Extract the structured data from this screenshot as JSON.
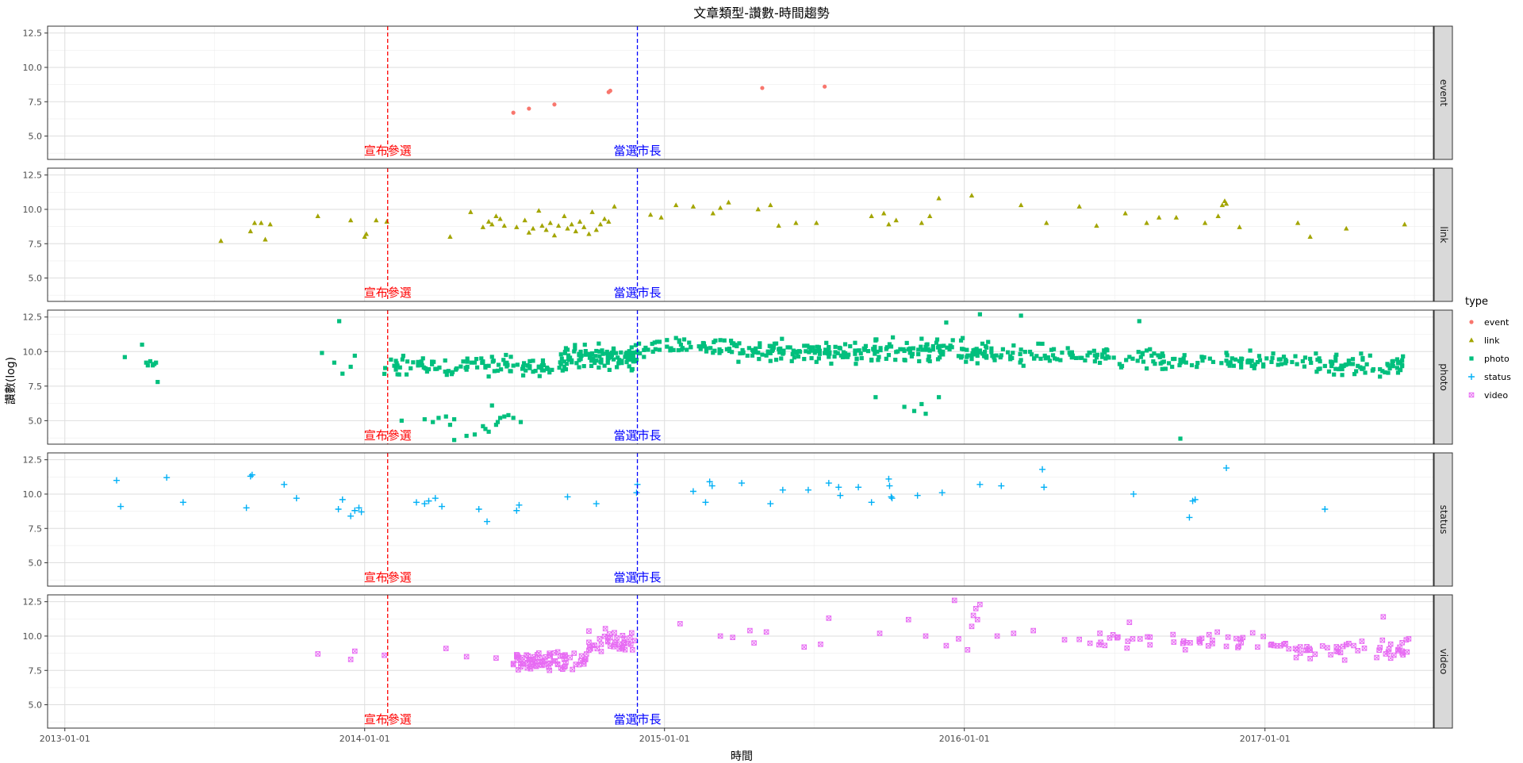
{
  "chart_data": {
    "type": "scatter",
    "title": "文章類型-讚數-時間趨勢",
    "xlabel": "時間",
    "ylabel": "讚數(log)",
    "x_type": "date",
    "xlim": [
      "2012-12-11",
      "2017-07-25"
    ],
    "ylim": [
      3.3,
      13.0
    ],
    "x_ticks": [
      "2013-01-01",
      "2014-01-01",
      "2015-01-01",
      "2016-01-01",
      "2017-01-01"
    ],
    "y_ticks": [
      5.0,
      7.5,
      10.0,
      12.5
    ],
    "y_tick_labels": [
      "5.0",
      "7.5",
      "10.0",
      "12.5"
    ],
    "grid": true,
    "legend": {
      "title": "type",
      "position": "right"
    },
    "annotations": [
      {
        "label": "宣布參選",
        "date": "2014-01-29",
        "color": "#ff0000",
        "linestyle": "dashed"
      },
      {
        "label": "當選市長",
        "date": "2014-11-29",
        "color": "#0000ff",
        "linestyle": "dashed"
      }
    ],
    "series": [
      {
        "name": "event",
        "color": "#F8766D",
        "shape": "circle",
        "points": [
          [
            "2014-07-01",
            6.7
          ],
          [
            "2014-07-20",
            7.0
          ],
          [
            "2014-08-20",
            7.3
          ],
          [
            "2014-10-25",
            8.2
          ],
          [
            "2014-10-27",
            8.3
          ],
          [
            "2015-04-30",
            8.5
          ],
          [
            "2015-07-15",
            8.6
          ]
        ]
      },
      {
        "name": "link",
        "color": "#A3A500",
        "shape": "triangle",
        "points": [
          [
            "2013-07-10",
            7.7
          ],
          [
            "2013-08-15",
            8.4
          ],
          [
            "2013-08-20",
            9.0
          ],
          [
            "2013-08-28",
            9.0
          ],
          [
            "2013-09-02",
            7.8
          ],
          [
            "2013-09-08",
            8.9
          ],
          [
            "2013-11-05",
            9.5
          ],
          [
            "2013-12-15",
            9.2
          ],
          [
            "2014-01-01",
            8.0
          ],
          [
            "2014-01-03",
            8.2
          ],
          [
            "2014-01-15",
            9.2
          ],
          [
            "2014-01-28",
            9.1
          ],
          [
            "2014-04-15",
            8.0
          ],
          [
            "2014-05-10",
            9.8
          ],
          [
            "2014-05-25",
            8.7
          ],
          [
            "2014-06-01",
            9.1
          ],
          [
            "2014-06-05",
            8.9
          ],
          [
            "2014-06-10",
            9.5
          ],
          [
            "2014-06-15",
            9.3
          ],
          [
            "2014-06-20",
            8.8
          ],
          [
            "2014-07-05",
            8.7
          ],
          [
            "2014-07-15",
            9.2
          ],
          [
            "2014-07-20",
            8.3
          ],
          [
            "2014-07-25",
            8.6
          ],
          [
            "2014-08-01",
            9.9
          ],
          [
            "2014-08-05",
            8.8
          ],
          [
            "2014-08-10",
            8.5
          ],
          [
            "2014-08-15",
            9.0
          ],
          [
            "2014-08-20",
            8.1
          ],
          [
            "2014-08-25",
            8.8
          ],
          [
            "2014-09-01",
            9.5
          ],
          [
            "2014-09-05",
            8.6
          ],
          [
            "2014-09-10",
            8.9
          ],
          [
            "2014-09-15",
            8.4
          ],
          [
            "2014-09-20",
            9.1
          ],
          [
            "2014-09-25",
            8.7
          ],
          [
            "2014-10-01",
            8.2
          ],
          [
            "2014-10-05",
            9.8
          ],
          [
            "2014-10-10",
            8.5
          ],
          [
            "2014-10-15",
            8.9
          ],
          [
            "2014-10-20",
            9.3
          ],
          [
            "2014-10-25",
            9.1
          ],
          [
            "2014-11-01",
            10.2
          ],
          [
            "2014-12-15",
            9.6
          ],
          [
            "2014-12-28",
            9.4
          ],
          [
            "2015-01-15",
            10.3
          ],
          [
            "2015-02-05",
            10.2
          ],
          [
            "2015-03-01",
            9.7
          ],
          [
            "2015-03-10",
            10.1
          ],
          [
            "2015-03-20",
            10.5
          ],
          [
            "2015-04-25",
            10.0
          ],
          [
            "2015-05-10",
            10.3
          ],
          [
            "2015-05-20",
            8.8
          ],
          [
            "2015-06-10",
            9.0
          ],
          [
            "2015-07-05",
            9.0
          ],
          [
            "2015-09-10",
            9.5
          ],
          [
            "2015-09-25",
            9.7
          ],
          [
            "2015-10-01",
            8.9
          ],
          [
            "2015-10-10",
            9.2
          ],
          [
            "2015-11-10",
            9.0
          ],
          [
            "2015-11-20",
            9.5
          ],
          [
            "2015-12-01",
            10.8
          ],
          [
            "2016-01-10",
            11.0
          ],
          [
            "2016-03-10",
            10.3
          ],
          [
            "2016-04-10",
            9.0
          ],
          [
            "2016-05-20",
            10.2
          ],
          [
            "2016-06-10",
            8.8
          ],
          [
            "2016-07-15",
            9.7
          ],
          [
            "2016-08-10",
            9.0
          ],
          [
            "2016-08-25",
            9.4
          ],
          [
            "2016-09-15",
            9.4
          ],
          [
            "2016-10-20",
            9.0
          ],
          [
            "2016-11-05",
            9.5
          ],
          [
            "2016-11-10",
            10.3
          ],
          [
            "2016-11-13",
            10.6
          ],
          [
            "2016-11-15",
            10.4
          ],
          [
            "2016-12-01",
            8.7
          ],
          [
            "2017-02-10",
            9.0
          ],
          [
            "2017-04-10",
            8.6
          ],
          [
            "2017-06-20",
            8.9
          ],
          [
            "2017-02-25",
            8.0
          ]
        ]
      },
      {
        "name": "photo",
        "color": "#00BF7D",
        "shape": "square",
        "generator": "dense",
        "points": [
          [
            "2013-03-15",
            9.6
          ],
          [
            "2013-04-05",
            10.5
          ],
          [
            "2013-04-10",
            9.2
          ],
          [
            "2013-04-12",
            9.0
          ],
          [
            "2013-04-15",
            9.3
          ],
          [
            "2013-04-18",
            9.0
          ],
          [
            "2013-04-20",
            9.1
          ],
          [
            "2013-04-22",
            9.2
          ],
          [
            "2013-04-24",
            7.8
          ],
          [
            "2013-11-10",
            9.9
          ],
          [
            "2013-11-25",
            9.2
          ],
          [
            "2013-12-05",
            8.4
          ],
          [
            "2013-12-15",
            8.9
          ],
          [
            "2013-12-01",
            12.2
          ],
          [
            "2013-12-20",
            9.7
          ],
          [
            "2014-02-15",
            5.0
          ],
          [
            "2014-03-15",
            5.1
          ],
          [
            "2014-03-25",
            4.9
          ],
          [
            "2014-04-01",
            5.2
          ],
          [
            "2014-04-10",
            5.3
          ],
          [
            "2014-04-15",
            4.7
          ],
          [
            "2014-04-20",
            5.1
          ],
          [
            "2014-05-05",
            3.9
          ],
          [
            "2014-05-25",
            4.6
          ],
          [
            "2014-05-28",
            4.4
          ],
          [
            "2014-06-01",
            4.2
          ],
          [
            "2014-06-05",
            6.1
          ],
          [
            "2014-06-10",
            4.7
          ],
          [
            "2014-06-12",
            4.9
          ],
          [
            "2014-06-15",
            5.2
          ],
          [
            "2014-06-20",
            5.3
          ],
          [
            "2014-06-25",
            5.4
          ],
          [
            "2014-07-01",
            5.2
          ],
          [
            "2014-07-10",
            4.9
          ],
          [
            "2014-05-15",
            4.0
          ],
          [
            "2015-09-15",
            6.7
          ],
          [
            "2015-10-20",
            6.0
          ],
          [
            "2015-11-01",
            5.7
          ],
          [
            "2015-11-10",
            6.2
          ],
          [
            "2015-11-15",
            5.5
          ],
          [
            "2015-12-01",
            6.7
          ],
          [
            "2016-09-20",
            3.7
          ],
          [
            "2014-04-20",
            3.6
          ]
        ]
      },
      {
        "name": "status",
        "color": "#00B0F6",
        "shape": "plus",
        "points": [
          [
            "2013-03-05",
            11.0
          ],
          [
            "2013-03-10",
            9.1
          ],
          [
            "2013-05-05",
            11.2
          ],
          [
            "2013-05-25",
            9.4
          ],
          [
            "2013-08-10",
            9.0
          ],
          [
            "2013-08-15",
            11.3
          ],
          [
            "2013-08-17",
            11.4
          ],
          [
            "2013-09-25",
            10.7
          ],
          [
            "2013-10-10",
            9.7
          ],
          [
            "2013-11-30",
            8.9
          ],
          [
            "2013-12-05",
            9.6
          ],
          [
            "2013-12-15",
            8.4
          ],
          [
            "2013-12-20",
            8.8
          ],
          [
            "2013-12-25",
            9.0
          ],
          [
            "2013-12-28",
            8.7
          ],
          [
            "2014-03-05",
            9.4
          ],
          [
            "2014-03-15",
            9.3
          ],
          [
            "2014-03-20",
            9.5
          ],
          [
            "2014-03-28",
            9.7
          ],
          [
            "2014-04-05",
            9.1
          ],
          [
            "2014-05-20",
            8.9
          ],
          [
            "2014-05-30",
            8.0
          ],
          [
            "2014-07-05",
            8.8
          ],
          [
            "2014-07-08",
            9.2
          ],
          [
            "2014-09-05",
            9.8
          ],
          [
            "2014-10-10",
            9.3
          ],
          [
            "2014-11-28",
            10.1
          ],
          [
            "2014-11-29",
            10.7
          ],
          [
            "2015-02-05",
            10.2
          ],
          [
            "2015-02-20",
            9.4
          ],
          [
            "2015-02-25",
            10.9
          ],
          [
            "2015-02-28",
            10.6
          ],
          [
            "2015-04-05",
            10.8
          ],
          [
            "2015-05-10",
            9.3
          ],
          [
            "2015-05-25",
            10.3
          ],
          [
            "2015-06-25",
            10.3
          ],
          [
            "2015-07-20",
            10.8
          ],
          [
            "2015-08-01",
            10.5
          ],
          [
            "2015-08-03",
            9.9
          ],
          [
            "2015-08-25",
            10.5
          ],
          [
            "2015-09-10",
            9.4
          ],
          [
            "2015-10-01",
            11.1
          ],
          [
            "2015-10-02",
            10.6
          ],
          [
            "2015-10-04",
            9.8
          ],
          [
            "2015-10-05",
            9.7
          ],
          [
            "2015-11-05",
            9.9
          ],
          [
            "2015-12-05",
            10.1
          ],
          [
            "2016-01-20",
            10.7
          ],
          [
            "2016-02-15",
            10.6
          ],
          [
            "2016-04-05",
            11.8
          ],
          [
            "2016-04-07",
            10.5
          ],
          [
            "2016-07-25",
            10.0
          ],
          [
            "2016-10-01",
            8.3
          ],
          [
            "2016-10-05",
            9.5
          ],
          [
            "2016-10-08",
            9.6
          ],
          [
            "2016-11-15",
            11.9
          ],
          [
            "2017-03-15",
            8.9
          ]
        ]
      },
      {
        "name": "video",
        "color": "#E76BF3",
        "shape": "square-cross",
        "generator": "dense",
        "points": [
          [
            "2013-11-05",
            8.7
          ],
          [
            "2013-12-15",
            8.3
          ],
          [
            "2013-12-20",
            8.9
          ],
          [
            "2014-01-25",
            8.6
          ],
          [
            "2014-04-10",
            9.1
          ],
          [
            "2014-05-05",
            8.5
          ],
          [
            "2014-06-10",
            8.4
          ],
          [
            "2015-01-20",
            10.9
          ],
          [
            "2015-03-10",
            10.0
          ],
          [
            "2015-03-25",
            9.9
          ],
          [
            "2015-04-15",
            10.4
          ],
          [
            "2015-04-20",
            9.5
          ],
          [
            "2015-05-05",
            10.3
          ],
          [
            "2015-06-20",
            9.2
          ],
          [
            "2015-07-20",
            11.3
          ],
          [
            "2015-07-10",
            9.4
          ],
          [
            "2015-09-20",
            10.2
          ],
          [
            "2015-10-25",
            11.2
          ],
          [
            "2015-11-15",
            10.0
          ],
          [
            "2015-12-10",
            9.3
          ],
          [
            "2015-12-25",
            9.8
          ],
          [
            "2016-01-10",
            10.7
          ],
          [
            "2016-01-12",
            11.5
          ],
          [
            "2016-01-15",
            12.0
          ],
          [
            "2016-01-17",
            11.2
          ],
          [
            "2016-01-20",
            12.3
          ],
          [
            "2016-02-10",
            10.0
          ],
          [
            "2016-03-01",
            10.2
          ],
          [
            "2016-03-25",
            10.4
          ],
          [
            "2016-07-20",
            11.0
          ],
          [
            "2017-05-25",
            11.4
          ],
          [
            "2017-06-25",
            9.8
          ],
          [
            "2016-01-05",
            9.0
          ],
          [
            "2015-12-20",
            12.6
          ]
        ]
      }
    ]
  }
}
